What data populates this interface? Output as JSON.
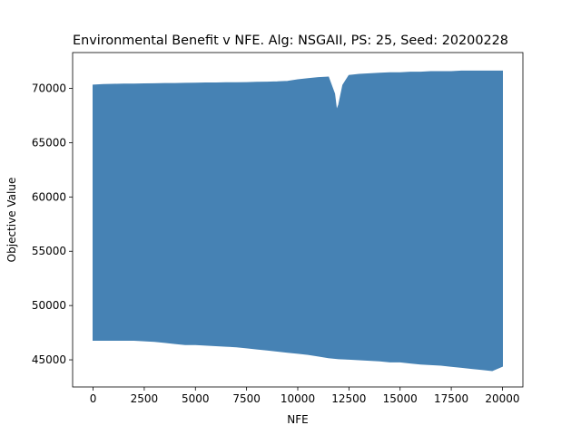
{
  "chart_data": {
    "type": "area",
    "title": "Environmental Benefit v NFE. Alg: NSGAII, PS: 25, Seed: 20200228",
    "xlabel": "NFE",
    "ylabel": "Objective Value",
    "xlim": [
      -1000,
      21000
    ],
    "ylim": [
      42500,
      73300
    ],
    "xticks": [
      0,
      2500,
      5000,
      7500,
      10000,
      12500,
      15000,
      17500,
      20000
    ],
    "xtick_labels": [
      "0",
      "2500",
      "5000",
      "7500",
      "10000",
      "12500",
      "15000",
      "17500",
      "20000"
    ],
    "yticks": [
      45000,
      50000,
      55000,
      60000,
      65000,
      70000
    ],
    "ytick_labels": [
      "45000",
      "50000",
      "55000",
      "60000",
      "65000",
      "70000"
    ],
    "grid": false,
    "series_color": "#4682b4",
    "upper_envelope": {
      "x": [
        0,
        500,
        1000,
        1500,
        2000,
        2500,
        3000,
        3500,
        4000,
        4500,
        5000,
        5500,
        6000,
        6500,
        7000,
        7500,
        8000,
        8500,
        9000,
        9500,
        10000,
        10500,
        11000,
        11500,
        11800,
        11900,
        12000,
        12200,
        12500,
        13000,
        13500,
        14000,
        14500,
        15000,
        15500,
        16000,
        16500,
        17000,
        17500,
        18000,
        18500,
        19000,
        19500,
        20000
      ],
      "y": [
        70300,
        70350,
        70380,
        70400,
        70400,
        70420,
        70430,
        70450,
        70450,
        70470,
        70480,
        70500,
        70500,
        70520,
        70520,
        70540,
        70560,
        70580,
        70600,
        70650,
        70800,
        70900,
        71000,
        71050,
        69500,
        68000,
        68500,
        70300,
        71200,
        71300,
        71350,
        71400,
        71450,
        71450,
        71500,
        71500,
        71550,
        71550,
        71550,
        71600,
        71600,
        71600,
        71600,
        71600
      ]
    },
    "lower_envelope": {
      "x": [
        0,
        500,
        1000,
        1500,
        2000,
        2500,
        3000,
        3500,
        4000,
        4500,
        5000,
        5500,
        6000,
        6500,
        7000,
        7500,
        8000,
        8500,
        9000,
        9500,
        10000,
        10500,
        11000,
        11500,
        12000,
        12500,
        13000,
        13500,
        14000,
        14500,
        15000,
        15500,
        16000,
        16500,
        17000,
        17500,
        18000,
        18500,
        19000,
        19500,
        20000
      ],
      "y": [
        46800,
        46800,
        46800,
        46800,
        46800,
        46750,
        46700,
        46600,
        46500,
        46400,
        46400,
        46350,
        46300,
        46250,
        46200,
        46100,
        46000,
        45900,
        45800,
        45700,
        45600,
        45500,
        45350,
        45200,
        45100,
        45050,
        45000,
        44950,
        44900,
        44800,
        44800,
        44700,
        44600,
        44550,
        44500,
        44400,
        44300,
        44200,
        44100,
        44000,
        44400
      ]
    }
  }
}
